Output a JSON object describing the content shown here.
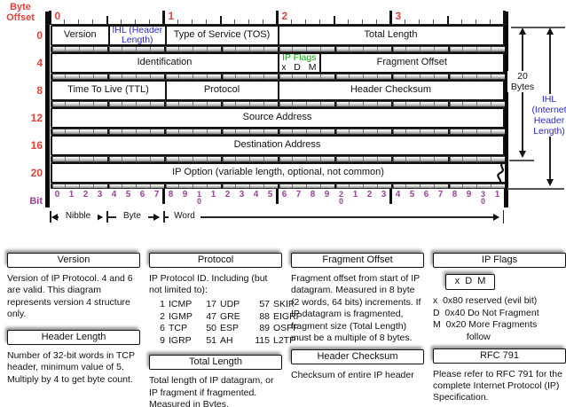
{
  "colors": {
    "red": "#e0443a",
    "blue": "#2929d8",
    "green": "#12a212",
    "purple": "#a040a0"
  },
  "header_diagram": {
    "byte_offset_label": "Byte Offset",
    "bit_label": "Bit",
    "byte_numbers": [
      "0",
      "1",
      "2",
      "3"
    ],
    "row_offsets": [
      "0",
      "4",
      "8",
      "12",
      "16",
      "20"
    ],
    "bit_numbers": [
      "0",
      "1",
      "2",
      "3",
      "4",
      "5",
      "6",
      "7",
      "8",
      "9",
      "10",
      "1",
      "2",
      "3",
      "4",
      "5",
      "6",
      "7",
      "8",
      "9",
      "20",
      "1",
      "2",
      "3",
      "4",
      "5",
      "6",
      "7",
      "8",
      "9",
      "30",
      "1"
    ],
    "scale": {
      "nibble": "Nibble",
      "byte": "Byte",
      "word": "Word"
    },
    "right_brackets": {
      "bytes20": "20 Bytes",
      "ihl": "IHL (Internet Header Length)"
    },
    "rows": [
      {
        "offset": "0",
        "cells": [
          {
            "label": "Version",
            "bits": 4
          },
          {
            "label": "IHL (Header Length)",
            "bits": 4,
            "color": "blue",
            "small": true
          },
          {
            "label": "Type of Service (TOS)",
            "bits": 8
          },
          {
            "label": "Total Length",
            "bits": 16
          }
        ]
      },
      {
        "offset": "4",
        "cells": [
          {
            "label": "Identification",
            "bits": 16
          },
          {
            "label": "IP Flags",
            "sub": "x  D  M",
            "bits": 3,
            "color": "green",
            "small": true
          },
          {
            "label": "Fragment Offset",
            "bits": 13
          }
        ]
      },
      {
        "offset": "8",
        "cells": [
          {
            "label": "Time To Live (TTL)",
            "bits": 8
          },
          {
            "label": "Protocol",
            "bits": 8
          },
          {
            "label": "Header Checksum",
            "bits": 16
          }
        ]
      },
      {
        "offset": "12",
        "cells": [
          {
            "label": "Source Address",
            "bits": 32
          }
        ]
      },
      {
        "offset": "16",
        "cells": [
          {
            "label": "Destination Address",
            "bits": 32
          }
        ]
      },
      {
        "offset": "20",
        "cells": [
          {
            "label": "IP Option (variable length, optional, not common)",
            "bits": 32
          }
        ],
        "wavy": true
      }
    ]
  },
  "legend": {
    "columns": [
      {
        "blocks": [
          {
            "type": "title",
            "text": "Version"
          },
          {
            "type": "body",
            "text": "Version of IP Protocol.  4 and 6 are valid.  This diagram represents version 4 structure only.",
            "mt": 6
          },
          {
            "type": "title",
            "text": "Header Length",
            "color": "blue",
            "mt": 10
          },
          {
            "type": "body",
            "text": "Number of 32-bit words in TCP header, minimum value of 5.  Multiply by 4 to get byte count.",
            "mt": 6
          }
        ]
      },
      {
        "blocks": [
          {
            "type": "title",
            "text": "Protocol"
          },
          {
            "type": "body",
            "text": "IP Protocol ID.  Including (but not limited to):",
            "mt": 6
          },
          {
            "type": "table",
            "rows": [
              [
                "1",
                "ICMP",
                "17",
                "UDP",
                "57",
                "SKIP"
              ],
              [
                "2",
                "IGMP",
                "47",
                "GRE",
                "88",
                "EIGRP"
              ],
              [
                "6",
                "TCP",
                "50",
                "ESP",
                "89",
                "OSPF"
              ],
              [
                "9",
                "IGRP",
                "51",
                "AH",
                "115",
                "L2TP"
              ]
            ]
          },
          {
            "type": "title",
            "text": "Total Length",
            "mt": 9
          },
          {
            "type": "body",
            "text": "Total length of IP datagram, or IP fragment if fragmented.  Measured in Bytes.",
            "mt": 6
          }
        ]
      },
      {
        "blocks": [
          {
            "type": "title",
            "text": "Fragment Offset"
          },
          {
            "type": "body",
            "text": "Fragment offset from start of IP datagram.  Measured in 8 byte (2 words, 64 bits) increments.  If IP datagram is fragmented, fragment size (Total Length) must be a multiple of 8 bytes.",
            "mt": 6
          },
          {
            "type": "title",
            "text": "Header Checksum",
            "mt": 5
          },
          {
            "type": "body",
            "text": "Checksum of entire IP header",
            "mt": 6
          }
        ]
      },
      {
        "blocks": [
          {
            "type": "title",
            "text": "IP Flags",
            "color": "green"
          },
          {
            "type": "flagbox",
            "text": "x  D  M"
          },
          {
            "type": "flaglines",
            "lines": [
              "x  0x80 reserved (evil bit)",
              "D  0x40 Do Not Fragment",
              "M  0x20 More Fragments",
              "             follow"
            ]
          },
          {
            "type": "title",
            "text": "RFC 791",
            "mt": 5
          },
          {
            "type": "body",
            "text": "Please refer to RFC 791 for the complete Internet Protocol (IP) Specification.",
            "mt": 6
          }
        ]
      }
    ]
  }
}
